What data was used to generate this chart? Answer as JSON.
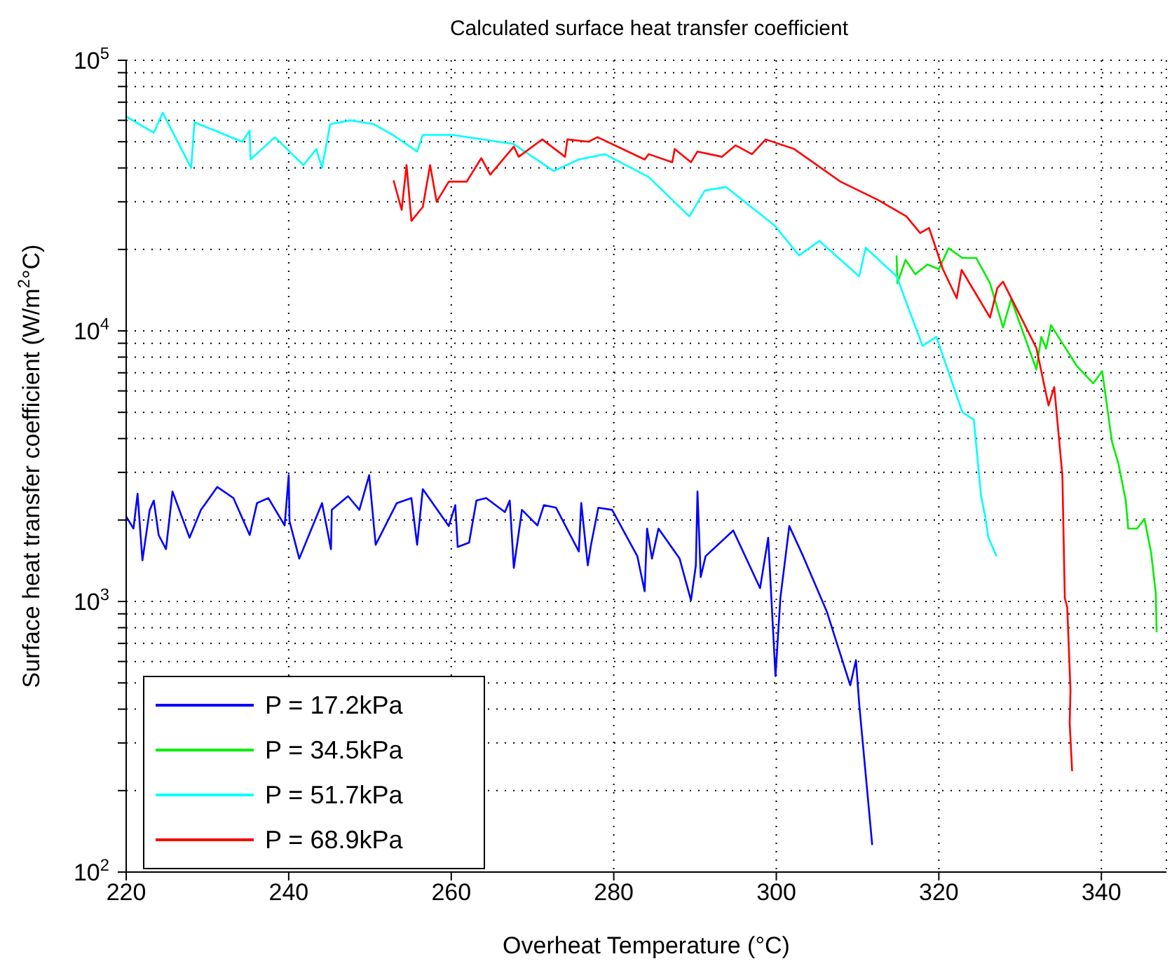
{
  "chart_data": {
    "type": "line",
    "title": "Calculated surface heat transfer coefficient",
    "xlabel": "Overheat Temperature (°C)",
    "ylabel": "Surface heat transfer coefficient (W/m$^{2}$°C)",
    "xlim": [
      220,
      348
    ],
    "xticks": [
      220,
      240,
      260,
      280,
      300,
      320,
      340
    ],
    "ylim": [
      100,
      100000
    ],
    "log": true,
    "grid": true,
    "legend": "bottom left",
    "yticks": [
      {
        "value": 100,
        "label": "10$^{2}$"
      },
      {
        "value": 200,
        "label": null
      },
      {
        "value": 300,
        "label": null
      },
      {
        "value": 400,
        "label": null
      },
      {
        "value": 500,
        "label": null
      },
      {
        "value": 600,
        "label": null
      },
      {
        "value": 700,
        "label": null
      },
      {
        "value": 800,
        "label": null
      },
      {
        "value": 900,
        "label": null
      },
      {
        "value": 1000,
        "label": "10$^{3}$"
      },
      {
        "value": 2000,
        "label": null
      },
      {
        "value": 3000,
        "label": null
      },
      {
        "value": 4000,
        "label": null
      },
      {
        "value": 5000,
        "label": null
      },
      {
        "value": 6000,
        "label": null
      },
      {
        "value": 7000,
        "label": null
      },
      {
        "value": 8000,
        "label": null
      },
      {
        "value": 9000,
        "label": null
      },
      {
        "value": 10000,
        "label": "10$^{4}$"
      },
      {
        "value": 20000,
        "label": null
      },
      {
        "value": 30000,
        "label": null
      },
      {
        "value": 40000,
        "label": null
      },
      {
        "value": 50000,
        "label": null
      },
      {
        "value": 60000,
        "label": null
      },
      {
        "value": 70000,
        "label": null
      },
      {
        "value": 80000,
        "label": null
      },
      {
        "value": 90000,
        "label": null
      },
      {
        "value": 100000,
        "label": "10$^{5}$"
      }
    ],
    "series": [
      {
        "name": "P = 17.2kPa",
        "color": "#0000ff",
        "x": [
          220,
          220.9,
          221.4,
          222,
          222.9,
          223.4,
          224,
          224.9,
          225.7,
          227.8,
          229.2,
          229.8,
          231.2,
          233.2,
          235.2,
          236.1,
          237.5,
          239.5,
          240,
          240.1,
          241.3,
          244.1,
          245.2,
          245.3,
          247.3,
          248.7,
          249.9,
          250.7,
          253.3,
          255.1,
          255.8,
          256.5,
          259.7,
          260.5,
          260.8,
          262.2,
          263.1,
          264.3,
          266.6,
          267.2,
          267.7,
          268.7,
          270.6,
          271.4,
          272.9,
          275.7,
          276,
          276.8,
          277.2,
          278.1,
          279.8,
          282.9,
          283.8,
          284.1,
          284.7,
          285.5,
          288.1,
          289.5,
          290.1,
          290.3,
          290.7,
          291.3,
          294.7,
          298,
          299,
          299.9,
          300.5,
          301.6,
          303.3,
          306.2,
          309.1,
          309.8,
          310.2,
          311.8
        ],
        "values": [
          2060,
          1860,
          2500,
          1420,
          2180,
          2360,
          1760,
          1560,
          2550,
          1720,
          2180,
          2310,
          2650,
          2410,
          1760,
          2310,
          2410,
          1910,
          2930,
          1980,
          1440,
          2310,
          1560,
          2180,
          2450,
          2180,
          2930,
          1620,
          2310,
          2410,
          1620,
          2600,
          1900,
          2270,
          1590,
          1650,
          2360,
          2410,
          2140,
          2360,
          1330,
          2180,
          1910,
          2270,
          2220,
          1530,
          2310,
          1360,
          1620,
          2220,
          2180,
          1470,
          1090,
          1860,
          1440,
          1860,
          1440,
          1010,
          1360,
          2550,
          1230,
          1470,
          1830,
          1120,
          1720,
          530,
          1030,
          1900,
          1470,
          920,
          490,
          607,
          418,
          126
        ]
      },
      {
        "name": "P = 34.5kPa",
        "color": "#00ee00",
        "x": [
          314.8,
          314.9,
          315.9,
          317.1,
          318.6,
          320,
          321.2,
          322.9,
          324.6,
          326.3,
          327.9,
          328.9,
          332,
          332.6,
          333.2,
          333.8,
          337,
          339,
          340.1,
          341.3,
          342.1,
          343,
          343.3,
          344.4,
          345.3,
          346.1,
          346.7,
          346.8
        ],
        "values": [
          19000,
          15000,
          18300,
          16200,
          17600,
          16900,
          20200,
          18600,
          18600,
          15000,
          10300,
          13100,
          7200,
          9500,
          8600,
          10500,
          7400,
          6400,
          7100,
          3900,
          3230,
          2360,
          1860,
          1860,
          2020,
          1530,
          1070,
          770
        ]
      },
      {
        "name": "P = 51.7kPa",
        "color": "#00ffff",
        "x": [
          220,
          223.4,
          224.5,
          228,
          228.4,
          234.3,
          235.2,
          235.3,
          238.3,
          241.8,
          243.4,
          244.1,
          245.1,
          247.6,
          250.5,
          252.8,
          255.8,
          256.5,
          260.2,
          267.7,
          272.6,
          275.7,
          278.9,
          284.3,
          289.3,
          291.2,
          293.8,
          299.8,
          302.8,
          305.3,
          310.2,
          311,
          314.8,
          318,
          319.7,
          322.9,
          324.3,
          325.2,
          325.7,
          326.1,
          327.1
        ],
        "values": [
          62000,
          54000,
          64000,
          40000,
          59000,
          50000,
          55000,
          43000,
          52000,
          41000,
          47000,
          40000,
          58000,
          60000,
          58000,
          53000,
          46000,
          53000,
          53000,
          49000,
          39000,
          43000,
          45000,
          37000,
          26500,
          33000,
          34000,
          24500,
          19000,
          21500,
          15900,
          20300,
          15900,
          8800,
          9500,
          5000,
          4700,
          2450,
          2060,
          1720,
          1470
        ]
      },
      {
        "name": "P = 68.9kPa",
        "color": "#ff0000",
        "x": [
          252.9,
          253.9,
          254.5,
          255.1,
          256.5,
          257.4,
          258.2,
          259.7,
          261.9,
          263.7,
          264.8,
          267.7,
          268.3,
          271.2,
          274,
          274.3,
          276.9,
          278,
          283.8,
          284.3,
          287.2,
          287.5,
          289.5,
          290.3,
          293.3,
          295,
          297,
          298.7,
          302.2,
          307.9,
          312.5,
          316,
          317.7,
          318.8,
          320.5,
          322.2,
          322.8,
          326.3,
          327.2,
          327.9,
          332,
          333.5,
          334.2,
          335.2,
          335.5,
          335.8,
          336.2,
          336.1,
          336.4
        ],
        "values": [
          36000,
          28000,
          41000,
          25500,
          28700,
          41000,
          30000,
          35600,
          35600,
          43500,
          37800,
          48000,
          44000,
          51000,
          44000,
          51000,
          50000,
          52000,
          43000,
          45000,
          42000,
          47000,
          42000,
          46000,
          44000,
          48500,
          45000,
          51000,
          47000,
          35600,
          30500,
          26500,
          23000,
          24000,
          16900,
          13200,
          16800,
          11200,
          14400,
          15200,
          8650,
          5300,
          6200,
          2930,
          1030,
          950,
          470,
          356,
          236
        ]
      }
    ]
  }
}
